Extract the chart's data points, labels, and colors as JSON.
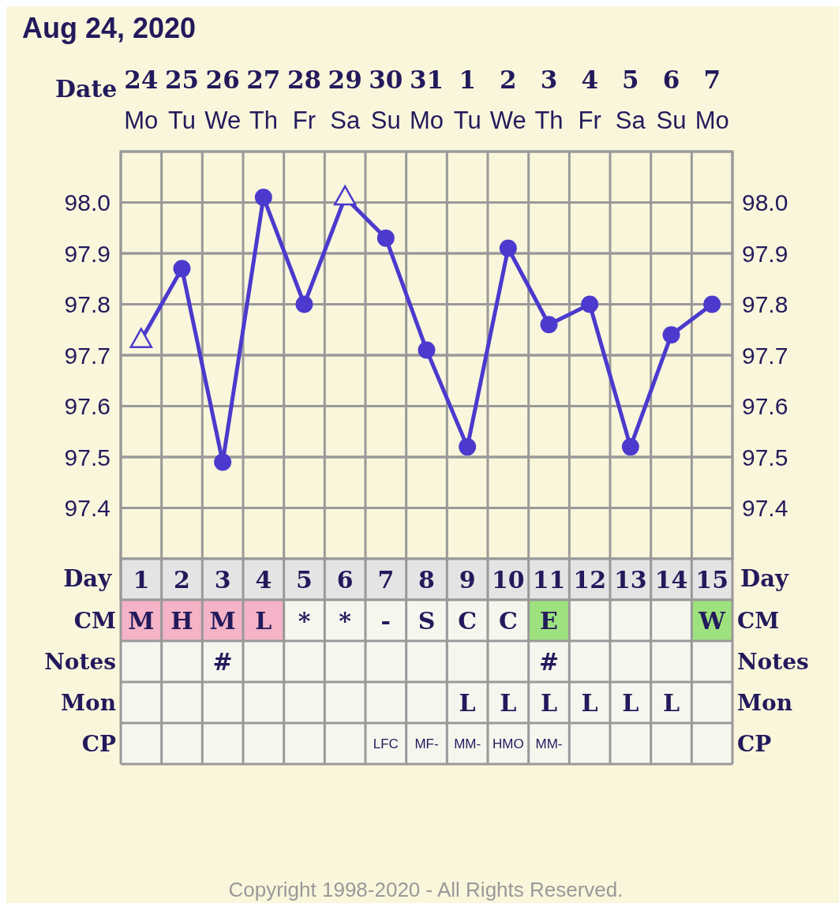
{
  "chart_data": [
    {
      "type": "line",
      "title": "Aug 24, 2020",
      "xlabel": "Date",
      "categories": [
        "24 Mo",
        "25 Tu",
        "26 We",
        "27 Th",
        "28 Fr",
        "29 Sa",
        "30 Su",
        "31 Mo",
        "1 Tu",
        "2 We",
        "3 Th",
        "4 Fr",
        "5 Sa",
        "6 Su",
        "7 Mo"
      ],
      "ylim": [
        97.3,
        98.1
      ],
      "yticks": [
        97.4,
        97.5,
        97.6,
        97.7,
        97.8,
        97.9,
        {
          "value": 98,
          "label": "98.0"
        }
      ],
      "y2lim": [
        97.3,
        98.1
      ],
      "y2ticks": [
        97.4,
        97.5,
        97.6,
        97.7,
        97.8,
        97.9,
        {
          "value": 98,
          "label": "98.0"
        }
      ],
      "grid": true,
      "series": [
        {
          "type": "line",
          "color": "#4b3acd",
          "marker": "none",
          "values": [
            97.73,
            97.87,
            97.49,
            98.01,
            97.8,
            98.01,
            97.93,
            97.71,
            97.52,
            97.91,
            97.76,
            97.8,
            97.52,
            97.74,
            97.8
          ]
        },
        {
          "type": "scatter",
          "color": "#4b3acd",
          "marker": "circle",
          "values": [
            null,
            97.87,
            97.49,
            98.01,
            97.8,
            null,
            97.93,
            97.71,
            97.52,
            97.91,
            97.76,
            97.8,
            97.52,
            97.74,
            97.8
          ]
        },
        {
          "type": "scatter",
          "color": "#4b3acd",
          "marker": "triangle",
          "values": [
            97.73,
            null,
            null,
            null,
            null,
            98.01,
            null,
            null,
            null,
            null,
            null,
            null,
            null,
            null,
            null
          ]
        }
      ],
      "x2label": "Day",
      "x2lim": [
        0.5,
        15.5
      ],
      "x2ticks": [
        1,
        2,
        3,
        4,
        5,
        6,
        7,
        8,
        9,
        10,
        11,
        12,
        13,
        14,
        15
      ],
      "annotations": [
        "Copyright 1998-2020 - All Rights Reserved."
      ]
    },
    {
      "type": "other",
      "y_categories": [
        "CM",
        "Notes",
        "Mon",
        "CP"
      ],
      "y2_categories": [
        "CM",
        "Notes",
        "Mon",
        "CP"
      ],
      "cell_labels": [
        [
          "M",
          "H",
          "M",
          "L",
          "*",
          "*",
          "-",
          "S",
          "C",
          "C",
          "E",
          null,
          null,
          null,
          "W"
        ],
        [
          null,
          null,
          "#",
          null,
          null,
          null,
          null,
          null,
          null,
          null,
          "#",
          null,
          null,
          null,
          null
        ],
        [
          null,
          null,
          null,
          null,
          null,
          null,
          null,
          null,
          "L",
          "L",
          "L",
          "L",
          "L",
          "L",
          null
        ],
        [
          null,
          null,
          null,
          null,
          null,
          null,
          "LFC",
          "MF-",
          "MM-",
          "HMO",
          "MM-",
          null,
          null,
          null,
          null
        ]
      ],
      "colors": [
        [
          "#f4b3c6",
          "#f4b3c6",
          "#f4b3c6",
          "#f4b3c6",
          null,
          null,
          null,
          null,
          null,
          null,
          "#9de27e",
          null,
          null,
          null,
          "#9de27e"
        ],
        [
          null,
          null,
          null,
          null,
          null,
          null,
          null,
          null,
          null,
          null,
          null,
          null,
          null,
          null,
          null
        ],
        [
          null,
          null,
          null,
          null,
          null,
          null,
          null,
          null,
          null,
          null,
          null,
          null,
          null,
          null,
          null
        ],
        [
          null,
          null,
          null,
          null,
          null,
          null,
          null,
          null,
          null,
          null,
          null,
          null,
          null,
          null,
          null
        ]
      ]
    }
  ]
}
